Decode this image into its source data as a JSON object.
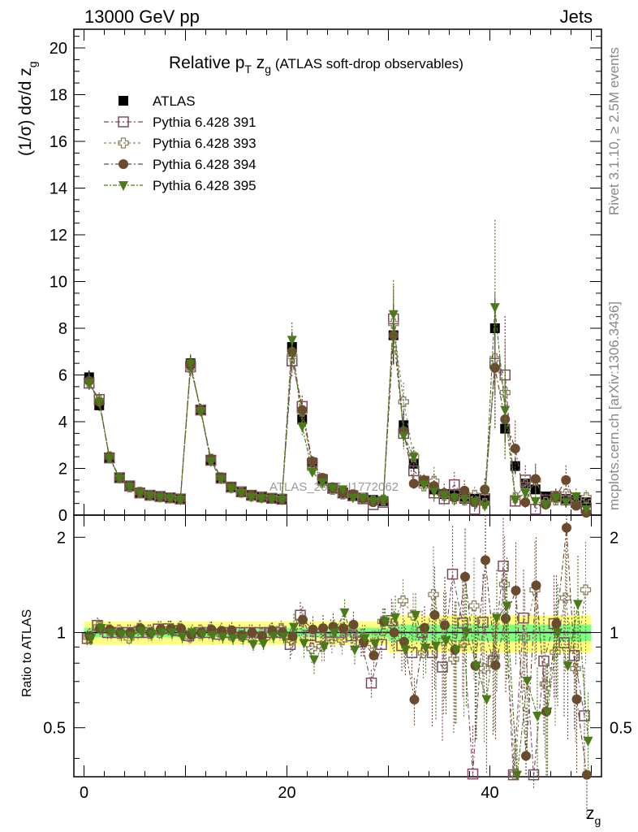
{
  "header": {
    "left": "13000 GeV pp",
    "right": "Jets"
  },
  "side_labels": {
    "rivet": "Rivet 3.1.10, ≥ 2.5M events",
    "mcplots": "mcplots.cern.ch [arXiv:1306.3436]"
  },
  "watermark": "ATLAS_2017_I1772062",
  "title": {
    "pre": "Relative p",
    "sub1": "T",
    "mid": " z",
    "sub2": "g",
    "post": " (ATLAS soft-drop observables)"
  },
  "ylabel_main": {
    "text": "(1/σ) dσ/d z",
    "sub": "g"
  },
  "ylabel_ratio": "Ratio to ATLAS",
  "xlabel": {
    "text": "z",
    "sub": "g"
  },
  "colors": {
    "atlas": "#000000",
    "p391": "#7b4a60",
    "p393": "#8a8060",
    "p394": "#6b4a30",
    "p395": "#4a7a1a",
    "band_yellow": "#ffff80",
    "band_green": "#80ff80"
  },
  "chart_data": {
    "type": "scatter",
    "x": [
      0.5,
      1.5,
      2.5,
      3.5,
      4.5,
      5.5,
      6.5,
      7.5,
      8.5,
      9.5,
      10.5,
      11.5,
      12.5,
      13.5,
      14.5,
      15.5,
      16.5,
      17.5,
      18.5,
      19.5,
      20.5,
      21.5,
      22.5,
      23.5,
      24.5,
      25.5,
      26.5,
      27.5,
      28.5,
      29.5,
      30.5,
      31.5,
      32.5,
      33.5,
      34.5,
      35.5,
      36.5,
      37.5,
      38.5,
      39.5,
      40.5,
      41.5,
      42.5,
      43.5,
      44.5,
      45.5,
      46.5,
      47.5,
      48.5,
      49.5
    ],
    "xlim": [
      -1,
      51
    ],
    "main_ylim": [
      0,
      20.8
    ],
    "main_yticks": [
      0,
      2,
      4,
      6,
      8,
      10,
      12,
      14,
      16,
      18,
      20
    ],
    "ratio_ylim": [
      0.35,
      2.35
    ],
    "ratio_yticks": [
      0.5,
      1,
      2
    ],
    "xticks": [
      0,
      20,
      40
    ],
    "series": [
      {
        "name": "ATLAS",
        "key": "atlas",
        "marker": "square-filled",
        "values": [
          5.9,
          4.7,
          2.45,
          1.6,
          1.25,
          0.95,
          0.85,
          0.78,
          0.72,
          0.68,
          6.5,
          4.5,
          2.35,
          1.6,
          1.2,
          1.0,
          0.85,
          0.78,
          0.72,
          0.68,
          7.2,
          4.1,
          2.25,
          1.55,
          1.15,
          0.95,
          0.85,
          0.75,
          0.65,
          0.6,
          7.7,
          3.85,
          2.2,
          1.45,
          1.1,
          0.9,
          0.85,
          0.7,
          0.7,
          0.65,
          8.0,
          3.7,
          2.1,
          1.35,
          1.1,
          0.8,
          0.75,
          0.7,
          0.65,
          0.55
        ]
      },
      {
        "name": "Pythia 6.428 391",
        "key": "p391",
        "marker": "square-open",
        "values": [
          5.65,
          4.95,
          2.45,
          1.6,
          1.25,
          0.95,
          0.85,
          0.8,
          0.74,
          0.69,
          6.35,
          4.5,
          2.35,
          1.58,
          1.2,
          1.0,
          0.85,
          0.78,
          0.72,
          0.68,
          6.6,
          4.65,
          2.2,
          1.5,
          1.15,
          0.95,
          0.83,
          0.7,
          0.45,
          0.55,
          8.4,
          3.5,
          1.9,
          1.45,
          0.95,
          0.7,
          1.3,
          0.75,
          0.25,
          0.7,
          6.5,
          6.0,
          0.6,
          1.5,
          0.25,
          0.65,
          0.8,
          0.65,
          0.55,
          0.3
        ]
      },
      {
        "name": "Pythia 6.428 393",
        "key": "p393",
        "marker": "cross-open",
        "values": [
          5.7,
          4.9,
          2.5,
          1.6,
          1.2,
          0.98,
          0.85,
          0.78,
          0.74,
          0.7,
          6.3,
          4.5,
          2.4,
          1.6,
          1.18,
          0.98,
          0.82,
          0.76,
          0.73,
          0.7,
          6.8,
          4.45,
          2.0,
          1.4,
          1.1,
          0.9,
          0.85,
          0.72,
          0.6,
          0.65,
          8.2,
          4.85,
          2.5,
          1.25,
          1.45,
          0.85,
          0.7,
          0.65,
          0.85,
          0.5,
          6.7,
          5.25,
          0.75,
          1.3,
          1.5,
          0.55,
          0.65,
          0.9,
          0.5,
          0.75
        ]
      },
      {
        "name": "Pythia 6.428 394",
        "key": "p394",
        "marker": "circle-filled",
        "values": [
          5.75,
          4.85,
          2.5,
          1.6,
          1.25,
          0.98,
          0.85,
          0.8,
          0.74,
          0.7,
          6.4,
          4.5,
          2.4,
          1.62,
          1.22,
          0.98,
          0.85,
          0.76,
          0.73,
          0.68,
          7.0,
          4.5,
          2.3,
          1.6,
          1.2,
          0.98,
          0.9,
          0.7,
          0.55,
          0.65,
          7.7,
          3.6,
          1.35,
          1.5,
          1.25,
          0.95,
          0.75,
          1.05,
          0.55,
          1.1,
          6.3,
          4.1,
          2.85,
          0.55,
          1.55,
          0.45,
          0.8,
          1.5,
          0.4,
          0.1
        ]
      },
      {
        "name": "Pythia 6.428 395",
        "key": "p395",
        "marker": "triangle-down-filled",
        "values": [
          5.65,
          4.85,
          2.45,
          1.58,
          1.22,
          0.96,
          0.84,
          0.78,
          0.72,
          0.66,
          6.5,
          4.45,
          2.3,
          1.55,
          1.15,
          0.96,
          0.78,
          0.72,
          0.7,
          0.66,
          7.5,
          3.8,
          1.85,
          1.4,
          1.15,
          1.1,
          0.75,
          0.72,
          0.6,
          0.65,
          8.6,
          3.4,
          2.5,
          1.3,
          1.0,
          0.85,
          0.75,
          0.7,
          0.55,
          0.4,
          8.9,
          4.5,
          0.65,
          0.95,
          0.6,
          0.45,
          0.75,
          0.55,
          0.8,
          0.25
        ]
      }
    ],
    "legend": "top-left"
  }
}
